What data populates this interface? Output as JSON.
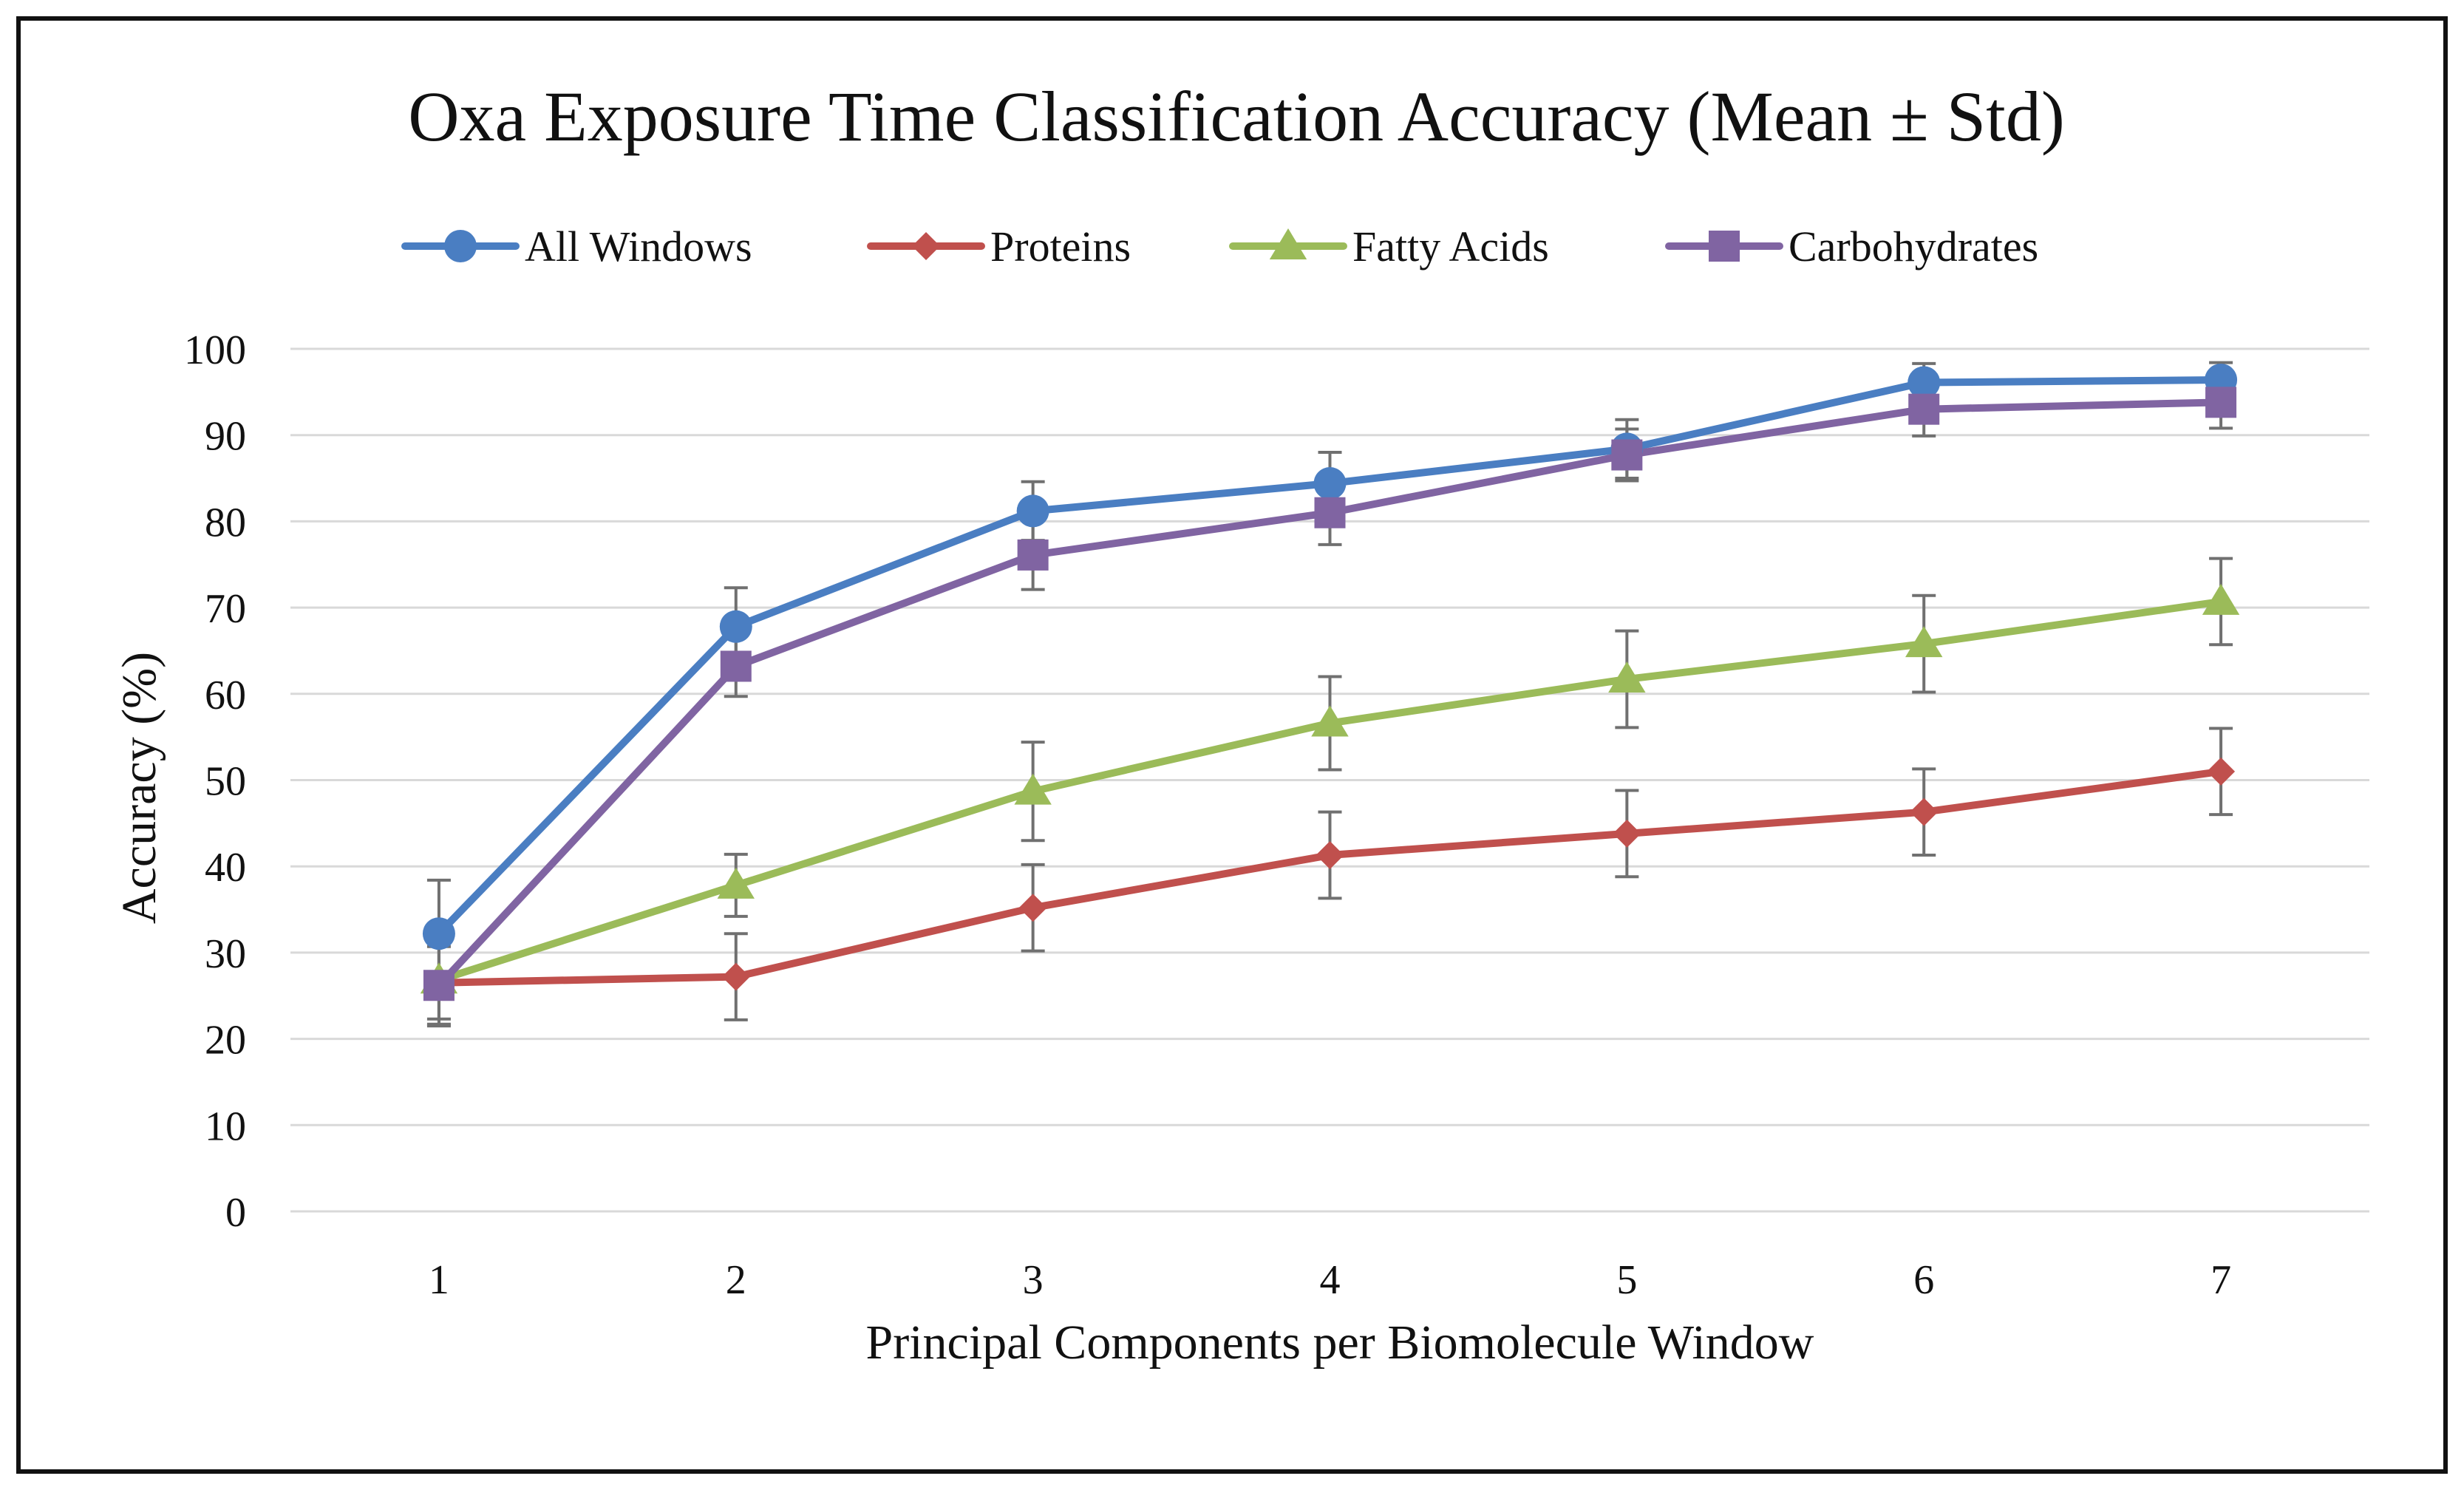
{
  "chart_data": {
    "type": "line",
    "title": "Oxa Exposure Time Classification Accuracy (Mean ± Std)",
    "xlabel": "Principal Components per Biomolecule Window",
    "ylabel": "Accuracy (%)",
    "x": [
      1,
      2,
      3,
      4,
      5,
      6,
      7
    ],
    "x_tick_labels": [
      "1",
      "2",
      "3",
      "4",
      "5",
      "6",
      "7"
    ],
    "ylim": [
      0,
      100
    ],
    "y_ticks": [
      0,
      10,
      20,
      30,
      40,
      50,
      60,
      70,
      80,
      90,
      100
    ],
    "y_tick_labels": [
      "0",
      "10",
      "20",
      "30",
      "40",
      "50",
      "60",
      "70",
      "80",
      "90",
      "100"
    ],
    "grid": true,
    "legend_position": "top",
    "series": [
      {
        "name": "All Windows",
        "color": "#4a7ec2",
        "marker": "circle",
        "values": [
          32.2,
          67.8,
          81.2,
          84.4,
          88.4,
          96.1,
          96.4
        ],
        "std": [
          6.2,
          4.5,
          3.4,
          3.6,
          3.4,
          2.2,
          2.0
        ]
      },
      {
        "name": "Proteins",
        "color": "#c0504d",
        "marker": "diamond",
        "values": [
          26.5,
          27.2,
          35.2,
          41.3,
          43.8,
          46.3,
          51.0
        ],
        "std": [
          5.0,
          5.0,
          5.0,
          5.0,
          5.0,
          5.0,
          5.0
        ]
      },
      {
        "name": "Fatty Acids",
        "color": "#9bbb59",
        "marker": "triangle",
        "values": [
          26.8,
          37.8,
          48.7,
          56.6,
          61.7,
          65.8,
          70.7
        ],
        "std": [
          4.5,
          3.6,
          5.7,
          5.4,
          5.6,
          5.6,
          5.0
        ]
      },
      {
        "name": "Carbohydrates",
        "color": "#8064a2",
        "marker": "square",
        "values": [
          26.2,
          63.2,
          76.1,
          81.0,
          87.7,
          93.0,
          93.8
        ],
        "std": [
          4.5,
          3.5,
          4.0,
          3.7,
          3.0,
          3.1,
          3.0
        ]
      }
    ]
  }
}
